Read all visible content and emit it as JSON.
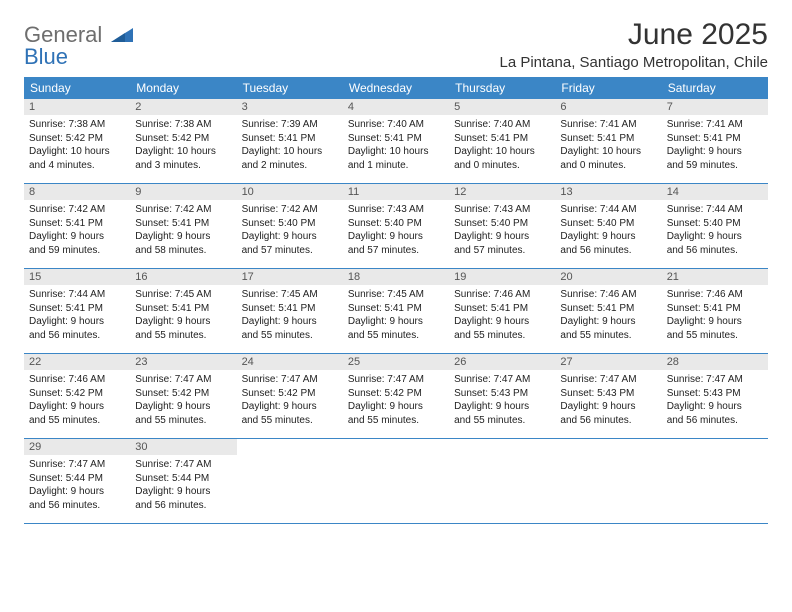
{
  "brand": {
    "general": "General",
    "blue": "Blue"
  },
  "title": "June 2025",
  "location": "La Pintana, Santiago Metropolitan, Chile",
  "colors": {
    "header_bg": "#3b86c6",
    "header_text": "#ffffff",
    "daynum_bg": "#e9e9e9",
    "daynum_text": "#555555",
    "week_border": "#3b86c6",
    "logo_gray": "#6e6e6e",
    "logo_blue": "#2f72b6",
    "body_bg": "#ffffff",
    "text": "#222222"
  },
  "fonts": {
    "title_size_pt": 30,
    "location_size_pt": 15,
    "dow_size_pt": 12,
    "daynum_size_pt": 11,
    "body_size_pt": 10
  },
  "dow": [
    "Sunday",
    "Monday",
    "Tuesday",
    "Wednesday",
    "Thursday",
    "Friday",
    "Saturday"
  ],
  "weeks": [
    [
      {
        "n": "1",
        "sunrise": "Sunrise: 7:38 AM",
        "sunset": "Sunset: 5:42 PM",
        "d1": "Daylight: 10 hours",
        "d2": "and 4 minutes."
      },
      {
        "n": "2",
        "sunrise": "Sunrise: 7:38 AM",
        "sunset": "Sunset: 5:42 PM",
        "d1": "Daylight: 10 hours",
        "d2": "and 3 minutes."
      },
      {
        "n": "3",
        "sunrise": "Sunrise: 7:39 AM",
        "sunset": "Sunset: 5:41 PM",
        "d1": "Daylight: 10 hours",
        "d2": "and 2 minutes."
      },
      {
        "n": "4",
        "sunrise": "Sunrise: 7:40 AM",
        "sunset": "Sunset: 5:41 PM",
        "d1": "Daylight: 10 hours",
        "d2": "and 1 minute."
      },
      {
        "n": "5",
        "sunrise": "Sunrise: 7:40 AM",
        "sunset": "Sunset: 5:41 PM",
        "d1": "Daylight: 10 hours",
        "d2": "and 0 minutes."
      },
      {
        "n": "6",
        "sunrise": "Sunrise: 7:41 AM",
        "sunset": "Sunset: 5:41 PM",
        "d1": "Daylight: 10 hours",
        "d2": "and 0 minutes."
      },
      {
        "n": "7",
        "sunrise": "Sunrise: 7:41 AM",
        "sunset": "Sunset: 5:41 PM",
        "d1": "Daylight: 9 hours",
        "d2": "and 59 minutes."
      }
    ],
    [
      {
        "n": "8",
        "sunrise": "Sunrise: 7:42 AM",
        "sunset": "Sunset: 5:41 PM",
        "d1": "Daylight: 9 hours",
        "d2": "and 59 minutes."
      },
      {
        "n": "9",
        "sunrise": "Sunrise: 7:42 AM",
        "sunset": "Sunset: 5:41 PM",
        "d1": "Daylight: 9 hours",
        "d2": "and 58 minutes."
      },
      {
        "n": "10",
        "sunrise": "Sunrise: 7:42 AM",
        "sunset": "Sunset: 5:40 PM",
        "d1": "Daylight: 9 hours",
        "d2": "and 57 minutes."
      },
      {
        "n": "11",
        "sunrise": "Sunrise: 7:43 AM",
        "sunset": "Sunset: 5:40 PM",
        "d1": "Daylight: 9 hours",
        "d2": "and 57 minutes."
      },
      {
        "n": "12",
        "sunrise": "Sunrise: 7:43 AM",
        "sunset": "Sunset: 5:40 PM",
        "d1": "Daylight: 9 hours",
        "d2": "and 57 minutes."
      },
      {
        "n": "13",
        "sunrise": "Sunrise: 7:44 AM",
        "sunset": "Sunset: 5:40 PM",
        "d1": "Daylight: 9 hours",
        "d2": "and 56 minutes."
      },
      {
        "n": "14",
        "sunrise": "Sunrise: 7:44 AM",
        "sunset": "Sunset: 5:40 PM",
        "d1": "Daylight: 9 hours",
        "d2": "and 56 minutes."
      }
    ],
    [
      {
        "n": "15",
        "sunrise": "Sunrise: 7:44 AM",
        "sunset": "Sunset: 5:41 PM",
        "d1": "Daylight: 9 hours",
        "d2": "and 56 minutes."
      },
      {
        "n": "16",
        "sunrise": "Sunrise: 7:45 AM",
        "sunset": "Sunset: 5:41 PM",
        "d1": "Daylight: 9 hours",
        "d2": "and 55 minutes."
      },
      {
        "n": "17",
        "sunrise": "Sunrise: 7:45 AM",
        "sunset": "Sunset: 5:41 PM",
        "d1": "Daylight: 9 hours",
        "d2": "and 55 minutes."
      },
      {
        "n": "18",
        "sunrise": "Sunrise: 7:45 AM",
        "sunset": "Sunset: 5:41 PM",
        "d1": "Daylight: 9 hours",
        "d2": "and 55 minutes."
      },
      {
        "n": "19",
        "sunrise": "Sunrise: 7:46 AM",
        "sunset": "Sunset: 5:41 PM",
        "d1": "Daylight: 9 hours",
        "d2": "and 55 minutes."
      },
      {
        "n": "20",
        "sunrise": "Sunrise: 7:46 AM",
        "sunset": "Sunset: 5:41 PM",
        "d1": "Daylight: 9 hours",
        "d2": "and 55 minutes."
      },
      {
        "n": "21",
        "sunrise": "Sunrise: 7:46 AM",
        "sunset": "Sunset: 5:41 PM",
        "d1": "Daylight: 9 hours",
        "d2": "and 55 minutes."
      }
    ],
    [
      {
        "n": "22",
        "sunrise": "Sunrise: 7:46 AM",
        "sunset": "Sunset: 5:42 PM",
        "d1": "Daylight: 9 hours",
        "d2": "and 55 minutes."
      },
      {
        "n": "23",
        "sunrise": "Sunrise: 7:47 AM",
        "sunset": "Sunset: 5:42 PM",
        "d1": "Daylight: 9 hours",
        "d2": "and 55 minutes."
      },
      {
        "n": "24",
        "sunrise": "Sunrise: 7:47 AM",
        "sunset": "Sunset: 5:42 PM",
        "d1": "Daylight: 9 hours",
        "d2": "and 55 minutes."
      },
      {
        "n": "25",
        "sunrise": "Sunrise: 7:47 AM",
        "sunset": "Sunset: 5:42 PM",
        "d1": "Daylight: 9 hours",
        "d2": "and 55 minutes."
      },
      {
        "n": "26",
        "sunrise": "Sunrise: 7:47 AM",
        "sunset": "Sunset: 5:43 PM",
        "d1": "Daylight: 9 hours",
        "d2": "and 55 minutes."
      },
      {
        "n": "27",
        "sunrise": "Sunrise: 7:47 AM",
        "sunset": "Sunset: 5:43 PM",
        "d1": "Daylight: 9 hours",
        "d2": "and 56 minutes."
      },
      {
        "n": "28",
        "sunrise": "Sunrise: 7:47 AM",
        "sunset": "Sunset: 5:43 PM",
        "d1": "Daylight: 9 hours",
        "d2": "and 56 minutes."
      }
    ],
    [
      {
        "n": "29",
        "sunrise": "Sunrise: 7:47 AM",
        "sunset": "Sunset: 5:44 PM",
        "d1": "Daylight: 9 hours",
        "d2": "and 56 minutes."
      },
      {
        "n": "30",
        "sunrise": "Sunrise: 7:47 AM",
        "sunset": "Sunset: 5:44 PM",
        "d1": "Daylight: 9 hours",
        "d2": "and 56 minutes."
      },
      {
        "empty": true
      },
      {
        "empty": true
      },
      {
        "empty": true
      },
      {
        "empty": true
      },
      {
        "empty": true
      }
    ]
  ]
}
